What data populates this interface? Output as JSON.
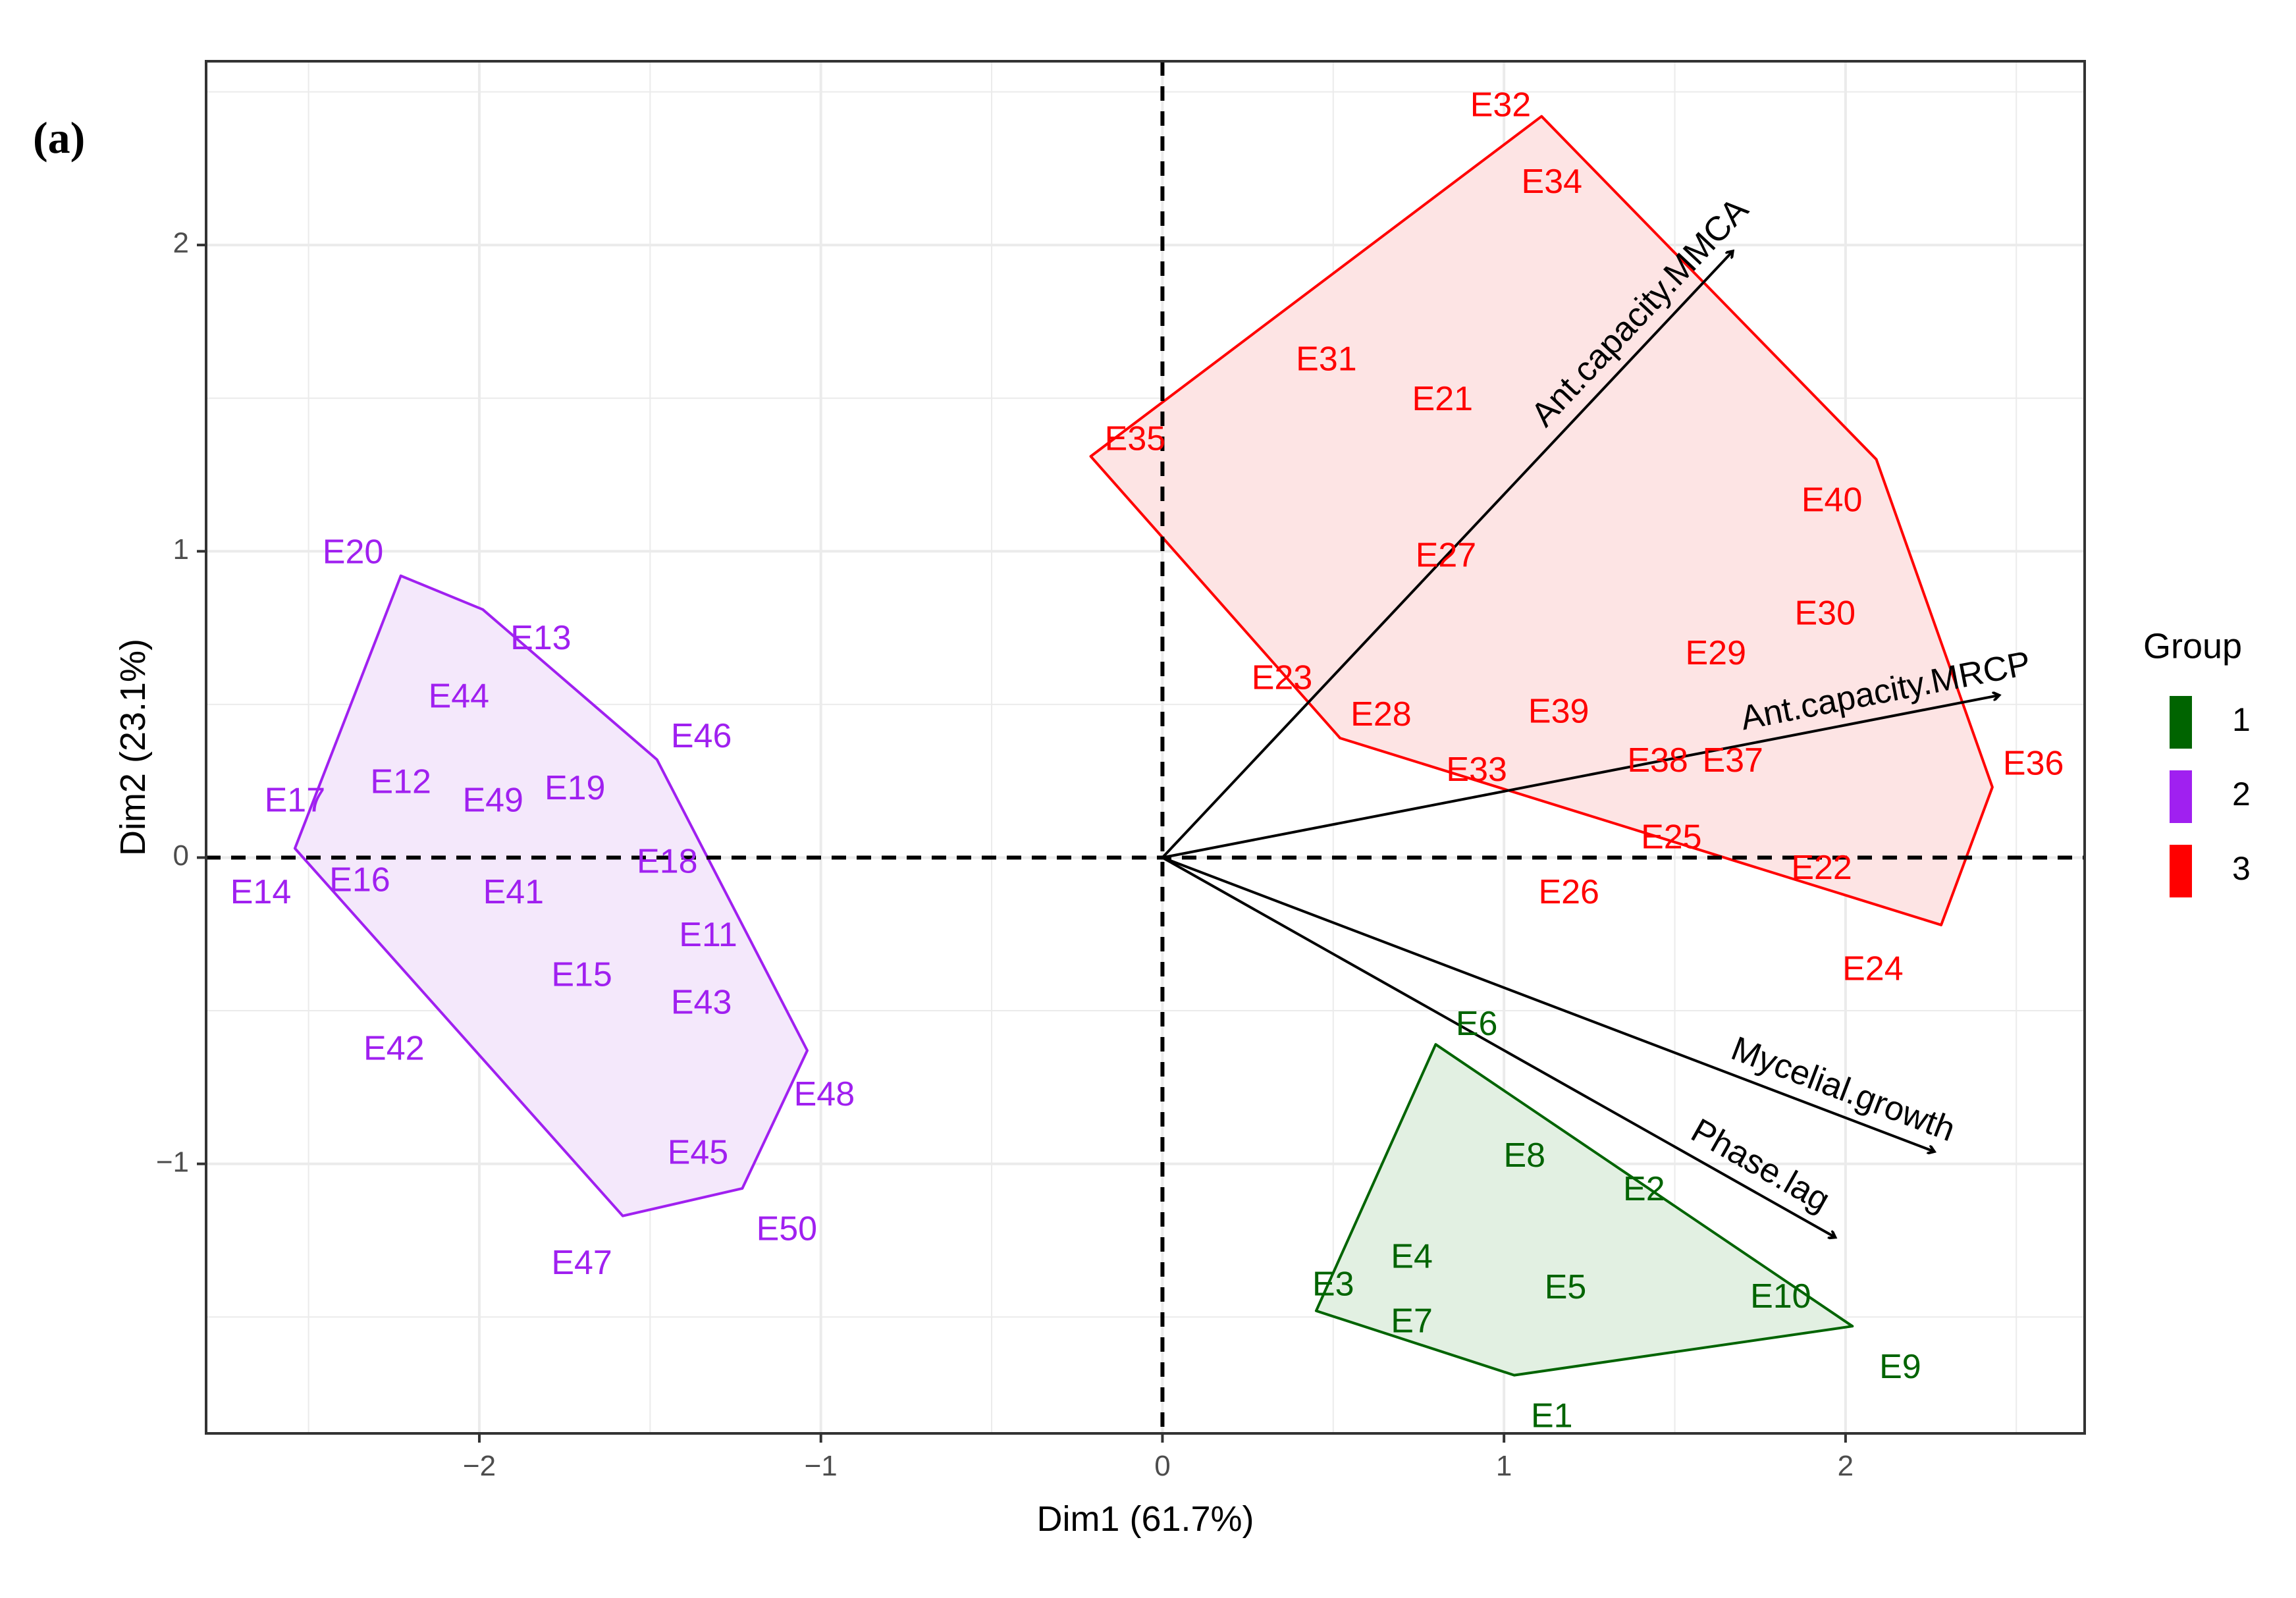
{
  "panel_label": "(a)",
  "chart_data": {
    "type": "scatter",
    "subtype": "pca_biplot",
    "xlabel": "Dim1 (61.7%)",
    "ylabel": "Dim2 (23.1%)",
    "xlim": [
      -2.8,
      2.7
    ],
    "ylim": [
      -1.88,
      2.6
    ],
    "x_ticks": [
      -2,
      -1,
      0,
      1,
      2
    ],
    "x_tick_labels": [
      "−2",
      "−1",
      "0",
      "1",
      "2"
    ],
    "y_ticks": [
      -1,
      0,
      1,
      2
    ],
    "y_tick_labels": [
      "−1",
      "0",
      "1",
      "2"
    ],
    "grid": true,
    "reference_lines": {
      "x": 0,
      "y": 0,
      "style": "dashed"
    },
    "legend": {
      "title": "Group",
      "position": "right",
      "entries": [
        {
          "label": "1",
          "color": "#006400"
        },
        {
          "label": "2",
          "color": "#A020F0"
        },
        {
          "label": "3",
          "color": "#FF0000"
        }
      ]
    },
    "groups": [
      {
        "name": "1",
        "color": "#006400",
        "fill": "#e2f0e2",
        "hull": [
          [
            0.8,
            -0.61
          ],
          [
            2.02,
            -1.53
          ],
          [
            1.03,
            -1.69
          ],
          [
            0.45,
            -1.48
          ]
        ],
        "points": [
          {
            "label": "E1",
            "x": 1.14,
            "y": -1.83
          },
          {
            "label": "E2",
            "x": 1.41,
            "y": -1.09
          },
          {
            "label": "E3",
            "x": 0.5,
            "y": -1.4
          },
          {
            "label": "E4",
            "x": 0.73,
            "y": -1.31
          },
          {
            "label": "E5",
            "x": 1.18,
            "y": -1.41
          },
          {
            "label": "E6",
            "x": 0.92,
            "y": -0.55
          },
          {
            "label": "E7",
            "x": 0.73,
            "y": -1.52
          },
          {
            "label": "E8",
            "x": 1.06,
            "y": -0.98
          },
          {
            "label": "E9",
            "x": 2.16,
            "y": -1.67
          },
          {
            "label": "E10",
            "x": 1.81,
            "y": -1.44
          }
        ]
      },
      {
        "name": "2",
        "color": "#A020F0",
        "fill": "#f4e8fb",
        "hull": [
          [
            -2.54,
            0.03
          ],
          [
            -2.23,
            0.92
          ],
          [
            -1.99,
            0.81
          ],
          [
            -1.48,
            0.32
          ],
          [
            -1.04,
            -0.63
          ],
          [
            -1.23,
            -1.08
          ],
          [
            -1.58,
            -1.17
          ]
        ],
        "points": [
          {
            "label": "E11",
            "x": -1.33,
            "y": -0.26
          },
          {
            "label": "E12",
            "x": -2.23,
            "y": 0.24
          },
          {
            "label": "E13",
            "x": -1.82,
            "y": 0.71
          },
          {
            "label": "E14",
            "x": -2.64,
            "y": -0.12
          },
          {
            "label": "E15",
            "x": -1.7,
            "y": -0.39
          },
          {
            "label": "E16",
            "x": -2.35,
            "y": -0.08
          },
          {
            "label": "E17",
            "x": -2.54,
            "y": 0.18
          },
          {
            "label": "E18",
            "x": -1.45,
            "y": -0.02
          },
          {
            "label": "E19",
            "x": -1.72,
            "y": 0.22
          },
          {
            "label": "E41",
            "x": -1.9,
            "y": -0.12
          },
          {
            "label": "E42",
            "x": -2.25,
            "y": -0.63
          },
          {
            "label": "E43",
            "x": -1.35,
            "y": -0.48
          },
          {
            "label": "E44",
            "x": -2.06,
            "y": 0.52
          },
          {
            "label": "E45",
            "x": -1.36,
            "y": -0.97
          },
          {
            "label": "E46",
            "x": -1.35,
            "y": 0.39
          },
          {
            "label": "E47",
            "x": -1.7,
            "y": -1.33
          },
          {
            "label": "E48",
            "x": -0.99,
            "y": -0.78
          },
          {
            "label": "E49",
            "x": -1.96,
            "y": 0.18
          },
          {
            "label": "E50",
            "x": -1.1,
            "y": -1.22
          },
          {
            "label": "E20",
            "x": -2.37,
            "y": 0.99
          }
        ]
      },
      {
        "name": "3",
        "color": "#FF0000",
        "fill": "#fde4e4",
        "hull": [
          [
            -0.21,
            1.31
          ],
          [
            1.11,
            2.42
          ],
          [
            2.09,
            1.3
          ],
          [
            2.43,
            0.23
          ],
          [
            2.28,
            -0.22
          ],
          [
            0.52,
            0.39
          ]
        ],
        "points": [
          {
            "label": "E21",
            "x": 0.82,
            "y": 1.49
          },
          {
            "label": "E22",
            "x": 1.93,
            "y": -0.04
          },
          {
            "label": "E23",
            "x": 0.35,
            "y": 0.58
          },
          {
            "label": "E24",
            "x": 2.08,
            "y": -0.37
          },
          {
            "label": "E25",
            "x": 1.49,
            "y": 0.06
          },
          {
            "label": "E26",
            "x": 1.19,
            "y": -0.12
          },
          {
            "label": "E27",
            "x": 0.83,
            "y": 0.98
          },
          {
            "label": "E28",
            "x": 0.64,
            "y": 0.46
          },
          {
            "label": "E29",
            "x": 1.62,
            "y": 0.66
          },
          {
            "label": "E30",
            "x": 1.94,
            "y": 0.79
          },
          {
            "label": "E31",
            "x": 0.48,
            "y": 1.62
          },
          {
            "label": "E32",
            "x": 0.99,
            "y": 2.45
          },
          {
            "label": "E33",
            "x": 0.92,
            "y": 0.28
          },
          {
            "label": "E34",
            "x": 1.14,
            "y": 2.2
          },
          {
            "label": "E35",
            "x": -0.08,
            "y": 1.36
          },
          {
            "label": "E36",
            "x": 2.55,
            "y": 0.3
          },
          {
            "label": "E37",
            "x": 1.67,
            "y": 0.31
          },
          {
            "label": "E38",
            "x": 1.45,
            "y": 0.31
          },
          {
            "label": "E39",
            "x": 1.16,
            "y": 0.47
          },
          {
            "label": "E40",
            "x": 1.96,
            "y": 1.16
          }
        ]
      }
    ],
    "variables": [
      {
        "label": "Ant.capacity.MMCA",
        "x": 1.67,
        "y": 1.98
      },
      {
        "label": "Ant.capacity.MRCP",
        "x": 2.45,
        "y": 0.53
      },
      {
        "label": "Mycelial.growth",
        "x": 2.26,
        "y": -0.96
      },
      {
        "label": "Phase.lag",
        "x": 1.97,
        "y": -1.24
      }
    ]
  }
}
